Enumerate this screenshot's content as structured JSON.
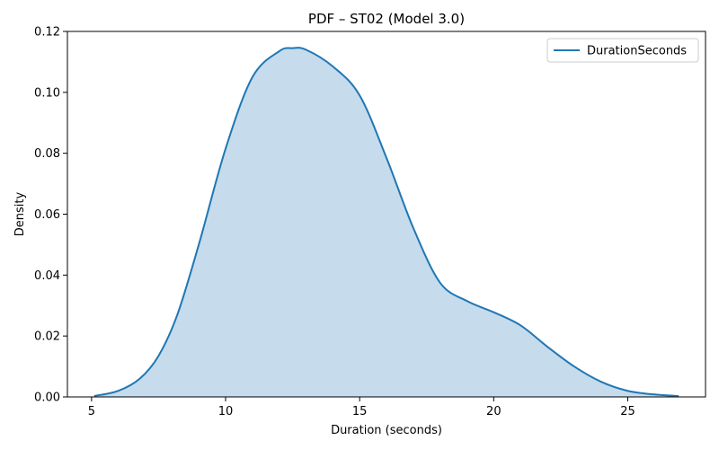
{
  "chart_data": {
    "type": "area",
    "title": "PDF – ST02 (Model 3.0)",
    "xlabel": "Duration (seconds)",
    "ylabel": "Density",
    "xlim": [
      4.1,
      27.9
    ],
    "ylim": [
      0,
      0.12
    ],
    "xticks": [
      5,
      10,
      15,
      20,
      25
    ],
    "xtick_labels": [
      "5",
      "10",
      "15",
      "20",
      "25"
    ],
    "yticks": [
      0,
      0.02,
      0.04,
      0.06,
      0.08,
      0.1,
      0.12
    ],
    "ytick_labels": [
      "0.00",
      "0.02",
      "0.04",
      "0.06",
      "0.08",
      "0.10",
      "0.12"
    ],
    "grid": false,
    "legend_position": "top-right",
    "series": [
      {
        "name": "DurationSeconds",
        "color": "#1f77b4",
        "fill_color": "#c6dbec",
        "x": [
          5.1,
          6.0,
          6.8,
          7.5,
          8.2,
          9.0,
          10.0,
          11.0,
          12.0,
          12.5,
          13.0,
          14.0,
          15.0,
          16.0,
          17.0,
          18.0,
          19.0,
          20.0,
          21.0,
          22.0,
          23.0,
          24.0,
          25.0,
          26.0,
          26.9
        ],
        "y": [
          0.0003,
          0.002,
          0.006,
          0.0135,
          0.027,
          0.05,
          0.0815,
          0.105,
          0.1135,
          0.1145,
          0.114,
          0.1085,
          0.099,
          0.0785,
          0.0555,
          0.0375,
          0.0315,
          0.0278,
          0.0235,
          0.0165,
          0.01,
          0.005,
          0.002,
          0.0008,
          0.0003
        ]
      }
    ]
  }
}
